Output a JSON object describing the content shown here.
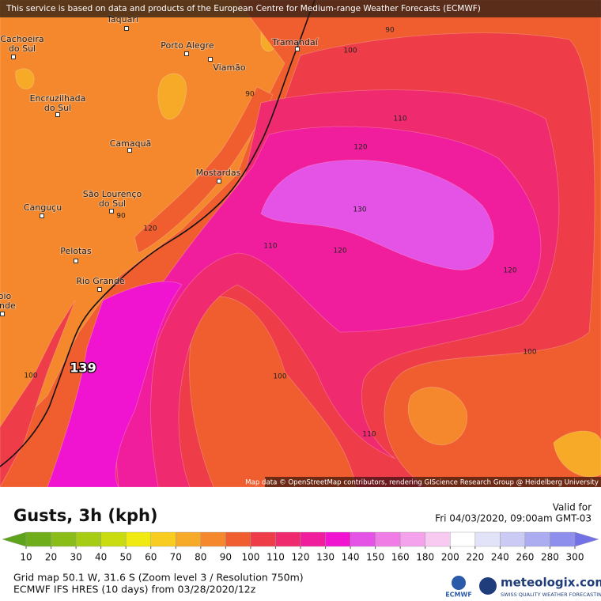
{
  "header": {
    "attribution": "This service is based on data and products of the European Centre for Medium-range Weather Forecasts (ECMWF)"
  },
  "map": {
    "cities": [
      {
        "lines": [
          "Taquari"
        ]
      },
      {
        "lines": [
          "Cachoeira",
          "do Sul"
        ]
      },
      {
        "lines": [
          "Porto Alegre"
        ]
      },
      {
        "lines": [
          "Viamão"
        ]
      },
      {
        "lines": [
          "Tramandaí"
        ]
      },
      {
        "lines": [
          "Encruzilhada",
          "do Sul"
        ]
      },
      {
        "lines": [
          "Camaquã"
        ]
      },
      {
        "lines": [
          "Mostardas"
        ]
      },
      {
        "lines": [
          "São Lourenço",
          "do Sul"
        ]
      },
      {
        "lines": [
          "Canguçu"
        ]
      },
      {
        "lines": [
          "Pelotas"
        ]
      },
      {
        "lines": [
          "Rio Grande"
        ]
      },
      {
        "lines": [
          "oio",
          "ande"
        ]
      }
    ],
    "contour_labels": [
      90,
      100,
      90,
      110,
      120,
      130,
      120,
      110,
      120,
      90,
      120,
      100,
      100,
      110,
      100
    ],
    "max_gust": 139,
    "attribution": "Map data © OpenStreetMap contributors, rendering GIScience Research Group @ Heidelberg University"
  },
  "legend": {
    "title": "Gusts, 3h (kph)",
    "valid_label": "Valid for",
    "valid_time": "Fri 04/03/2020, 09:00am GMT-03",
    "ticks": [
      10,
      20,
      30,
      40,
      50,
      60,
      70,
      80,
      90,
      100,
      110,
      120,
      130,
      140,
      150,
      160,
      180,
      200,
      220,
      240,
      260,
      280,
      300
    ],
    "colors": [
      "#5ea31c",
      "#6fae1a",
      "#8abd18",
      "#a6cc14",
      "#c8dc10",
      "#f0ea12",
      "#f8cc20",
      "#f7aa28",
      "#f5882c",
      "#f05e30",
      "#ee3c48",
      "#f02a6e",
      "#f01e9c",
      "#f014d0",
      "#e452e6",
      "#f07ce6",
      "#f4a2ec",
      "#f8caf2",
      "#ffffff",
      "#e2e2f8",
      "#cacaf4",
      "#acacf0",
      "#8e8eec",
      "#7272e6"
    ]
  },
  "footer": {
    "grid": "Grid map 50.1 W, 31.6 S (Zoom level 3 / Resolution 750m)",
    "model": "ECMWF IFS HRES (10 days) from 03/28/2020/12z",
    "ecmwf_logo": "ECMWF",
    "brand": "meteologix.com",
    "tagline": "SWISS QUALITY WEATHER FORECASTING"
  }
}
